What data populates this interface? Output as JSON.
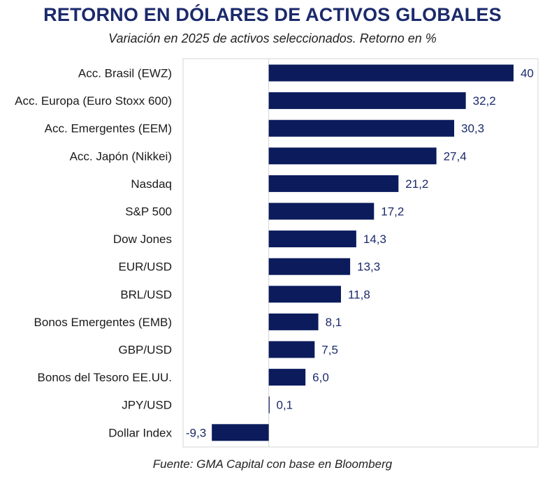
{
  "chart_data": {
    "type": "bar",
    "orientation": "horizontal",
    "title": "RETORNO EN DÓLARES DE ACTIVOS GLOBALES",
    "subtitle": "Variación en 2025 de activos seleccionados. Retorno en %",
    "categories": [
      "Acc. Brasil (EWZ)",
      "Acc. Europa (Euro Stoxx 600)",
      "Acc. Emergentes (EEM)",
      "Acc. Japón (Nikkei)",
      "Nasdaq",
      "S&P 500",
      "Dow Jones",
      "EUR/USD",
      "BRL/USD",
      "Bonos Emergentes (EMB)",
      "GBP/USD",
      "Bonos del Tesoro EE.UU.",
      "JPY/USD",
      "Dollar Index"
    ],
    "values": [
      40,
      32.2,
      30.3,
      27.4,
      21.2,
      17.2,
      14.3,
      13.3,
      11.8,
      8.1,
      7.5,
      6.0,
      0.1,
      -9.3
    ],
    "value_labels": [
      "40",
      "32,2",
      "30,3",
      "27,4",
      "21,2",
      "17,2",
      "14,3",
      "13,3",
      "11,8",
      "8,1",
      "7,5",
      "6,0",
      "0,1",
      "-9,3"
    ],
    "xlim": [
      -14,
      44
    ],
    "grid": false,
    "bar_color": "#0b1b5c",
    "label_color": "#1b2a6b",
    "source": "Fuente: GMA Capital con base en Bloomberg"
  }
}
